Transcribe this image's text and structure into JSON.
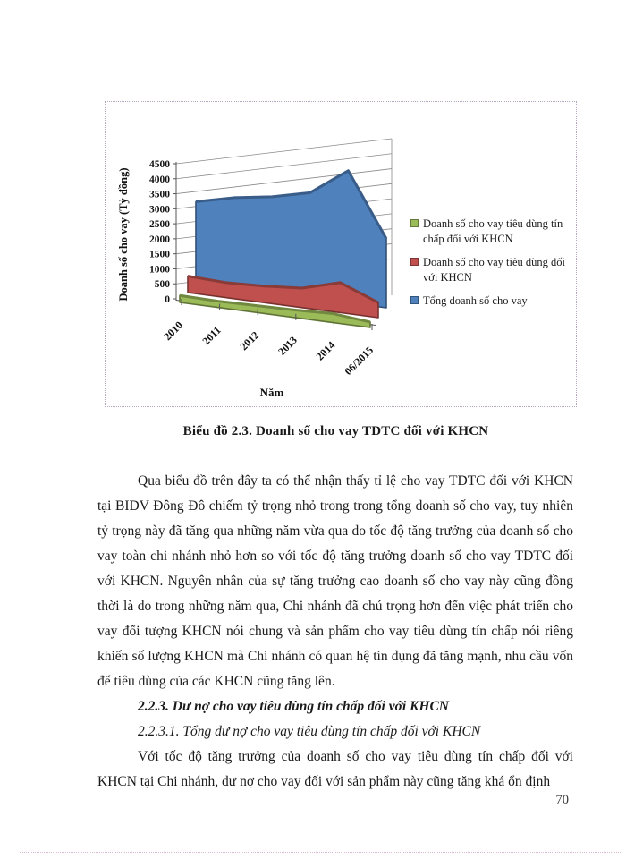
{
  "page": {
    "number": "70"
  },
  "figure": {
    "caption": "Biểu đồ 2.3. Doanh số cho vay TDTC  đối với KHCN"
  },
  "chart_data": {
    "type": "area",
    "projection": "3d",
    "xlabel": "Năm",
    "ylabel": "Doanh số cho vay (Tỷ đồng)",
    "categories": [
      "2010",
      "2011",
      "2012",
      "2013",
      "2014",
      "06/2015"
    ],
    "y_ticks": [
      0,
      500,
      1000,
      1500,
      2000,
      2500,
      3000,
      3500,
      4000,
      4500
    ],
    "ylim": [
      0,
      4500
    ],
    "grid": true,
    "legend_position": "right",
    "values_note": "values estimated from 3D chart gridlines, Tỷ đồng",
    "series": [
      {
        "name": "Doanh số cho vay tiêu dùng tín chấp đối với KHCN",
        "color": "#9BBB59",
        "values": [
          230,
          210,
          230,
          250,
          300,
          180
        ]
      },
      {
        "name": "Doanh số cho vay tiêu dùng đối với KHCN",
        "color": "#C0504D",
        "values": [
          550,
          500,
          550,
          650,
          1000,
          500
        ]
      },
      {
        "name": "Tổng doanh số cho vay",
        "color": "#4F81BD",
        "values": [
          2700,
          3000,
          3200,
          3500,
          4400,
          2300
        ]
      }
    ]
  },
  "body": {
    "p1": "Qua biểu đồ trên đây ta có thể nhận thấy tỉ lệ cho vay TDTC  đối với KHCN tại BIDV  Đông Đô chiếm tỷ trọng nhỏ trong trong tổng doanh số cho vay, tuy nhiên tỷ trọng này đã tăng qua những năm vừa qua do tốc độ tăng trưởng của doanh số cho vay toàn chi nhánh nhỏ hơn so với tốc độ tăng trưởng doanh số cho vay TDTC đối với KHCN. Nguyên nhân của sự tăng trưởng cao doanh số cho vay này cũng đồng thời là do trong những năm qua, Chi nhánh đã chú trọng hơn đến việc phát triển cho vay đối tượng KHCN nói chung và sản phẩm cho vay tiêu dùng tín chấp nói riêng khiến số lượng KHCN mà Chi nhánh có quan hệ tín dụng đã tăng mạnh, nhu cầu vốn để tiêu dùng của các KHCN cũng tăng lên.",
    "h223": "2.2.3. Dư nợ cho vay tiêu dùng tín chấp đối với KHCN",
    "h2231": "2.2.3.1. Tổng dư nợ cho vay tiêu dùng tín chấp đối với KHCN",
    "p2": "Với tốc độ tăng trưởng của doanh số cho vay tiêu dùng tín chấp đối với KHCN tại Chi nhánh,  dư nợ cho vay đối với sản phẩm này cũng tăng khá ổn định"
  }
}
